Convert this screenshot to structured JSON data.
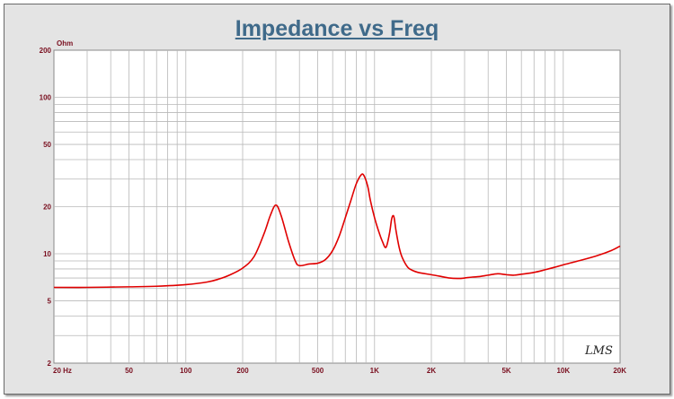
{
  "chart_data": {
    "type": "line",
    "title": "Impedance vs Freq",
    "ylabel_unit": "Ohm",
    "xscale": "log",
    "yscale": "log",
    "xlim": [
      20,
      20000
    ],
    "ylim": [
      2,
      200
    ],
    "grid": true,
    "x_ticks": [
      {
        "value": 20,
        "label": "20  Hz"
      },
      {
        "value": 50,
        "label": "50"
      },
      {
        "value": 100,
        "label": "100"
      },
      {
        "value": 200,
        "label": "200"
      },
      {
        "value": 500,
        "label": "500"
      },
      {
        "value": 1000,
        "label": "1K"
      },
      {
        "value": 2000,
        "label": "2K"
      },
      {
        "value": 5000,
        "label": "5K"
      },
      {
        "value": 10000,
        "label": "10K"
      },
      {
        "value": 20000,
        "label": "20K"
      }
    ],
    "y_ticks": [
      {
        "value": 2,
        "label": "2"
      },
      {
        "value": 5,
        "label": "5"
      },
      {
        "value": 10,
        "label": "10"
      },
      {
        "value": 20,
        "label": "20"
      },
      {
        "value": 50,
        "label": "50"
      },
      {
        "value": 100,
        "label": "100"
      },
      {
        "value": 200,
        "label": "200"
      }
    ],
    "series": [
      {
        "color": "#e00000",
        "x": [
          20,
          30,
          50,
          70,
          100,
          130,
          150,
          170,
          200,
          230,
          260,
          280,
          300,
          320,
          350,
          380,
          400,
          450,
          500,
          550,
          600,
          650,
          700,
          750,
          800,
          850,
          880,
          920,
          950,
          1000,
          1050,
          1100,
          1150,
          1200,
          1230,
          1250,
          1270,
          1300,
          1350,
          1400,
          1500,
          1600,
          1700,
          1800,
          2000,
          2200,
          2500,
          2800,
          3000,
          3300,
          3600,
          4000,
          4500,
          5000,
          5500,
          6000,
          7000,
          8000,
          9000,
          10000,
          12000,
          15000,
          18000,
          20000
        ],
        "y": [
          6.1,
          6.1,
          6.15,
          6.2,
          6.35,
          6.6,
          6.9,
          7.3,
          8.1,
          9.6,
          13.5,
          17.5,
          20.5,
          17.5,
          12.0,
          9.0,
          8.4,
          8.6,
          8.7,
          9.2,
          10.5,
          13.0,
          17.0,
          22.0,
          28.0,
          32.0,
          31.5,
          27.0,
          22.0,
          17.0,
          14.0,
          12.0,
          11.0,
          13.5,
          16.5,
          17.5,
          17.0,
          14.0,
          11.0,
          9.5,
          8.2,
          7.8,
          7.6,
          7.5,
          7.35,
          7.2,
          7.0,
          6.95,
          7.0,
          7.1,
          7.15,
          7.3,
          7.45,
          7.35,
          7.3,
          7.4,
          7.6,
          7.9,
          8.2,
          8.5,
          9.0,
          9.7,
          10.5,
          11.2
        ]
      }
    ],
    "watermark": "LMS"
  }
}
